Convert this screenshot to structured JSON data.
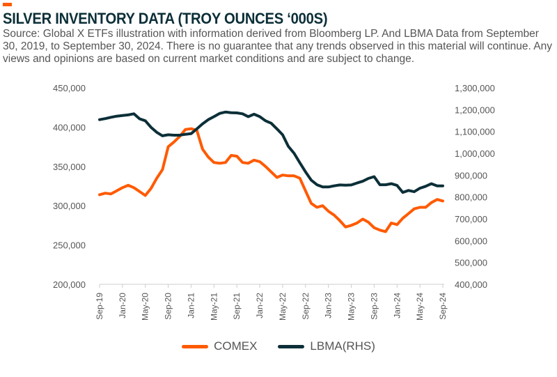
{
  "header": {
    "title": "SILVER INVENTORY DATA (TROY OUNCES ‘000S)",
    "source": "Source: Global X ETFs illustration with information derived from Bloomberg LP. And LBMA Data from September 30, 2019, to September 30, 2024. There is no guarantee that any trends observed in this material will continue. Any views and opinions are based on current market conditions and are subject to change."
  },
  "colors": {
    "accent": "#ff5a00",
    "comex": "#ff5a00",
    "lbma": "#0c2f38"
  },
  "chart_data": {
    "type": "line",
    "title": "SILVER INVENTORY DATA (TROY OUNCES ‘000S)",
    "x_ticks": [
      "Sep-19",
      "Jan-20",
      "May-20",
      "Sep-20",
      "Jan-21",
      "May-21",
      "Sep-21",
      "Jan-22",
      "May-22",
      "Sep-22",
      "Jan-23",
      "May-23",
      "Sep-23",
      "Jan-24",
      "May-24",
      "Sep-24"
    ],
    "x_range": [
      "Sep-19",
      "Sep-24"
    ],
    "y_left": {
      "range": [
        200000,
        450000
      ],
      "ticks": [
        "200,000",
        "250,000",
        "300,000",
        "350,000",
        "400,000",
        "450,000"
      ]
    },
    "y_right": {
      "range": [
        400000,
        1300000
      ],
      "ticks": [
        "400,000",
        "500,000",
        "600,000",
        "700,000",
        "800,000",
        "900,000",
        "1,000,000",
        "1,100,000",
        "1,200,000",
        "1,300,000"
      ]
    },
    "grid": false,
    "legend": "bottom",
    "series": [
      {
        "name": "COMEX",
        "axis": "left",
        "values": [
          314000,
          316000,
          315000,
          319000,
          323000,
          326000,
          323000,
          318000,
          313000,
          322000,
          335000,
          346000,
          375000,
          381000,
          388000,
          397000,
          398000,
          396000,
          372000,
          362000,
          355000,
          354000,
          355000,
          364000,
          363000,
          355000,
          354000,
          358000,
          356000,
          350000,
          343000,
          336000,
          339000,
          338000,
          338000,
          335000,
          319000,
          303000,
          298000,
          300000,
          293000,
          288000,
          281000,
          273000,
          275000,
          278000,
          283000,
          279000,
          272000,
          269000,
          267000,
          278000,
          276000,
          284000,
          290000,
          296000,
          298000,
          298000,
          304000,
          308000,
          306000
        ]
      },
      {
        "name": "LBMA(RHS)",
        "axis": "right",
        "values": [
          1154000,
          1159000,
          1165000,
          1170000,
          1173000,
          1176000,
          1181000,
          1158000,
          1149000,
          1119000,
          1096000,
          1080000,
          1085000,
          1083000,
          1083000,
          1087000,
          1090000,
          1112000,
          1135000,
          1154000,
          1168000,
          1183000,
          1189000,
          1186000,
          1185000,
          1181000,
          1168000,
          1179000,
          1168000,
          1149000,
          1138000,
          1112000,
          1085000,
          1032000,
          1000000,
          957000,
          915000,
          877000,
          856000,
          846000,
          846000,
          851000,
          855000,
          854000,
          855000,
          864000,
          872000,
          885000,
          893000,
          856000,
          856000,
          861000,
          853000,
          821000,
          830000,
          824000,
          840000,
          849000,
          861000,
          851000,
          851000
        ]
      }
    ]
  }
}
